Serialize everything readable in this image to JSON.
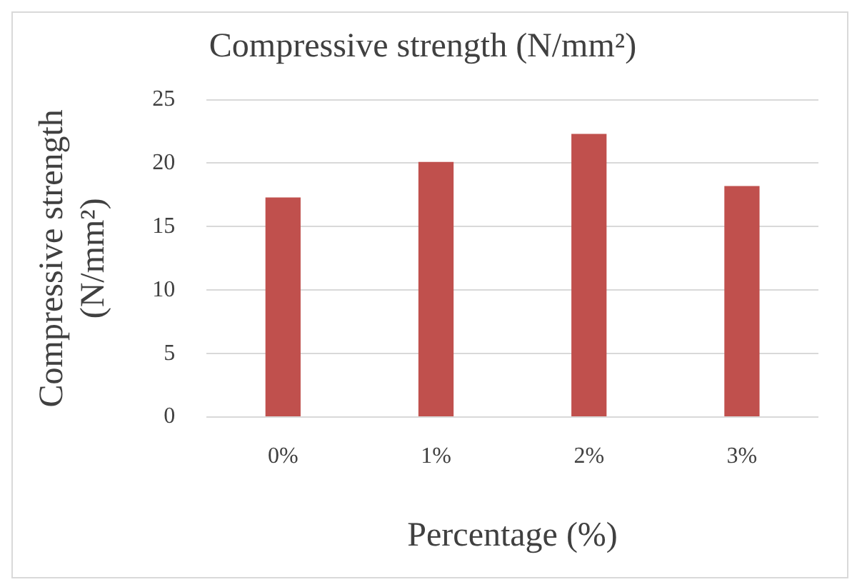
{
  "chart_data": {
    "type": "bar",
    "title": "Compressive strength (N/mm²)",
    "xlabel": "Percentage (%)",
    "ylabel": "Compressive strength (N/mm²)",
    "categories": [
      "0%",
      "1%",
      "2%",
      "3%"
    ],
    "values": [
      17.3,
      20.1,
      22.3,
      18.2
    ],
    "color": "#c0504d",
    "ylim": [
      0,
      25
    ],
    "yticks": [
      0,
      5,
      10,
      15,
      20,
      25
    ],
    "grid": "y",
    "legend": false
  }
}
